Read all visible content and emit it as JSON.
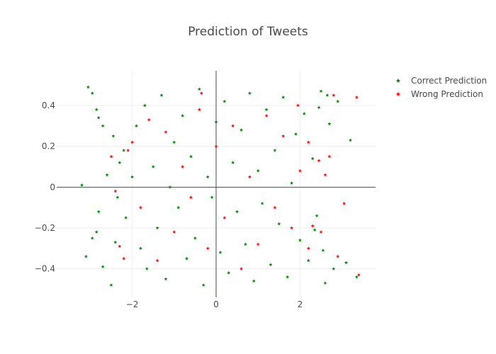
{
  "chart_data": {
    "type": "scatter",
    "title": "Prediction of Tweets",
    "xlim": [
      -3.8,
      3.8
    ],
    "ylim": [
      -0.54,
      0.57
    ],
    "x_ticks": [
      -2,
      0,
      2
    ],
    "x_tick_labels": [
      "−2",
      "0",
      "2"
    ],
    "y_ticks": [
      -0.4,
      -0.2,
      0,
      0.2,
      0.4
    ],
    "y_tick_labels": [
      "−0.4",
      "−0.2",
      "0",
      "0.2",
      "0.4"
    ],
    "grid": true,
    "legend_position": "top-right",
    "series": [
      {
        "name": "Correct Prediction",
        "color": "#008000",
        "points": [
          [
            -3.05,
            0.49
          ],
          [
            -2.95,
            0.46
          ],
          [
            -2.85,
            0.38
          ],
          [
            -2.8,
            0.34
          ],
          [
            -2.7,
            0.3
          ],
          [
            -2.6,
            0.06
          ],
          [
            -3.2,
            0.01
          ],
          [
            -2.95,
            -0.25
          ],
          [
            -2.85,
            -0.22
          ],
          [
            -2.8,
            -0.12
          ],
          [
            -3.1,
            -0.34
          ],
          [
            -2.7,
            -0.39
          ],
          [
            -2.5,
            -0.48
          ],
          [
            -2.4,
            -0.27
          ],
          [
            -2.3,
            0.12
          ],
          [
            -2.45,
            0.25
          ],
          [
            -2.2,
            0.18
          ],
          [
            -2.35,
            -0.05
          ],
          [
            -2.15,
            -0.15
          ],
          [
            -2.0,
            0.05
          ],
          [
            -1.9,
            0.3
          ],
          [
            -1.8,
            -0.3
          ],
          [
            -1.7,
            0.4
          ],
          [
            -1.65,
            -0.4
          ],
          [
            -1.5,
            0.1
          ],
          [
            -1.4,
            -0.2
          ],
          [
            -1.3,
            0.45
          ],
          [
            -1.2,
            -0.45
          ],
          [
            -1.1,
            0.0
          ],
          [
            -1.0,
            0.22
          ],
          [
            -0.9,
            -0.1
          ],
          [
            -0.8,
            0.35
          ],
          [
            -0.7,
            -0.35
          ],
          [
            -0.6,
            0.15
          ],
          [
            -0.5,
            -0.25
          ],
          [
            -0.4,
            0.48
          ],
          [
            -0.3,
            -0.48
          ],
          [
            -0.2,
            0.05
          ],
          [
            -0.1,
            -0.05
          ],
          [
            0.0,
            0.32
          ],
          [
            0.1,
            -0.32
          ],
          [
            0.2,
            0.42
          ],
          [
            0.3,
            -0.42
          ],
          [
            0.4,
            0.12
          ],
          [
            0.5,
            -0.12
          ],
          [
            0.6,
            0.28
          ],
          [
            0.7,
            -0.28
          ],
          [
            0.8,
            0.46
          ],
          [
            0.9,
            -0.46
          ],
          [
            1.0,
            0.08
          ],
          [
            1.1,
            -0.08
          ],
          [
            1.2,
            0.38
          ],
          [
            1.3,
            -0.38
          ],
          [
            1.4,
            0.18
          ],
          [
            1.5,
            -0.18
          ],
          [
            1.6,
            0.44
          ],
          [
            1.7,
            -0.44
          ],
          [
            1.8,
            0.02
          ],
          [
            1.9,
            0.26
          ],
          [
            2.0,
            -0.26
          ],
          [
            2.1,
            0.36
          ],
          [
            2.2,
            -0.36
          ],
          [
            2.3,
            0.14
          ],
          [
            2.4,
            -0.14
          ],
          [
            2.5,
            0.47
          ],
          [
            2.6,
            -0.47
          ],
          [
            2.7,
            0.31
          ],
          [
            2.8,
            -0.4
          ],
          [
            2.9,
            0.42
          ],
          [
            3.2,
            0.23
          ],
          [
            3.1,
            -0.37
          ],
          [
            3.35,
            -0.44
          ],
          [
            2.65,
            0.45
          ],
          [
            2.55,
            -0.31
          ],
          [
            2.45,
            0.39
          ],
          [
            2.35,
            -0.21
          ]
        ]
      },
      {
        "name": "Wrong Prediction",
        "color": "#ff0000",
        "points": [
          [
            -2.5,
            0.15
          ],
          [
            -2.4,
            -0.02
          ],
          [
            -2.3,
            -0.29
          ],
          [
            -2.2,
            -0.35
          ],
          [
            -2.0,
            0.22
          ],
          [
            -1.8,
            -0.1
          ],
          [
            -1.6,
            0.33
          ],
          [
            -1.4,
            -0.36
          ],
          [
            -1.2,
            0.27
          ],
          [
            -1.0,
            -0.22
          ],
          [
            -0.8,
            0.1
          ],
          [
            -0.6,
            -0.05
          ],
          [
            -0.4,
            0.38
          ],
          [
            -0.35,
            0.46
          ],
          [
            -0.2,
            -0.3
          ],
          [
            0.0,
            0.2
          ],
          [
            0.2,
            -0.15
          ],
          [
            0.4,
            0.3
          ],
          [
            0.6,
            -0.4
          ],
          [
            0.8,
            0.05
          ],
          [
            1.0,
            -0.28
          ],
          [
            1.2,
            0.35
          ],
          [
            1.4,
            -0.1
          ],
          [
            1.6,
            0.25
          ],
          [
            1.8,
            -0.2
          ],
          [
            2.0,
            0.08
          ],
          [
            2.2,
            0.22
          ],
          [
            2.3,
            -0.19
          ],
          [
            2.45,
            0.13
          ],
          [
            2.5,
            -0.22
          ],
          [
            2.6,
            0.06
          ],
          [
            2.7,
            0.15
          ],
          [
            2.8,
            0.45
          ],
          [
            3.05,
            -0.08
          ],
          [
            3.4,
            -0.43
          ],
          [
            3.35,
            0.44
          ],
          [
            2.9,
            -0.34
          ],
          [
            2.2,
            -0.3
          ],
          [
            1.95,
            0.4
          ],
          [
            -2.1,
            0.18
          ]
        ]
      }
    ]
  }
}
